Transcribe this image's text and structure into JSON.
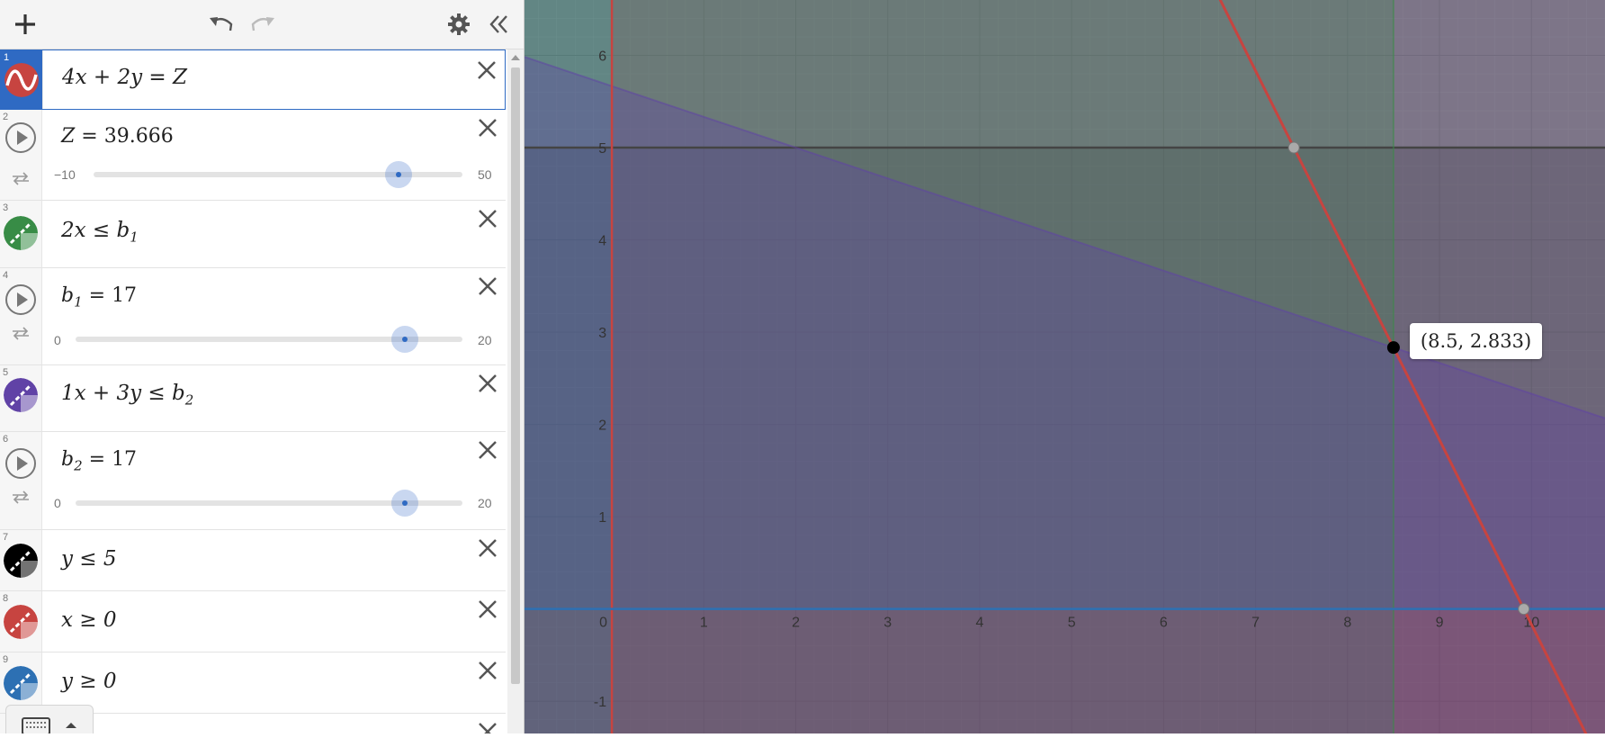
{
  "expressions": [
    {
      "index": "1",
      "type": "curve",
      "color": "#c74440",
      "parts": [
        "4x + 2y  =  Z"
      ]
    },
    {
      "index": "2",
      "type": "slider",
      "lhs": "Z",
      "value": "39.666",
      "min": "−10",
      "max": "50",
      "fraction": 0.828
    },
    {
      "index": "3",
      "type": "region",
      "color": "#388c46",
      "base": "2x  ≤ b",
      "sub": "1"
    },
    {
      "index": "4",
      "type": "slider",
      "lhs": "b",
      "lhs_sub": "1",
      "value": "17",
      "min": "0",
      "max": "20",
      "fraction": 0.85
    },
    {
      "index": "5",
      "type": "region",
      "color": "#6042a6",
      "base": "1x + 3y  ≤ b",
      "sub": "2"
    },
    {
      "index": "6",
      "type": "slider",
      "lhs": "b",
      "lhs_sub": "2",
      "value": "17",
      "min": "0",
      "max": "20",
      "fraction": 0.85
    },
    {
      "index": "7",
      "type": "region",
      "color": "#000000",
      "base": "y  ≤  5"
    },
    {
      "index": "8",
      "type": "region",
      "color": "#c74440",
      "base": "x ≥ 0"
    },
    {
      "index": "9",
      "type": "region",
      "color": "#2d70b3",
      "base": "y ≥ 0"
    }
  ],
  "graph": {
    "x_ticks": [
      "0",
      "1",
      "2",
      "3",
      "4",
      "5",
      "6",
      "7",
      "8",
      "9",
      "10"
    ],
    "y_ticks": [
      "-1",
      "1",
      "2",
      "3",
      "4",
      "5",
      "6"
    ],
    "x_range": [
      -0.95,
      10.8
    ],
    "y_range": [
      -1.35,
      6.6
    ],
    "objective_line": {
      "a": 4,
      "b": 2,
      "c": 39.666,
      "color": "#c74440"
    },
    "b1": 17,
    "b2": 17,
    "y_limit": 5,
    "point": {
      "x": 8.5,
      "y": 2.833
    },
    "point_label": "(8.5, 2.833)",
    "gray_points": [
      {
        "x": 7.4165,
        "y": 5
      },
      {
        "x": 9.9165,
        "y": 0
      }
    ]
  }
}
